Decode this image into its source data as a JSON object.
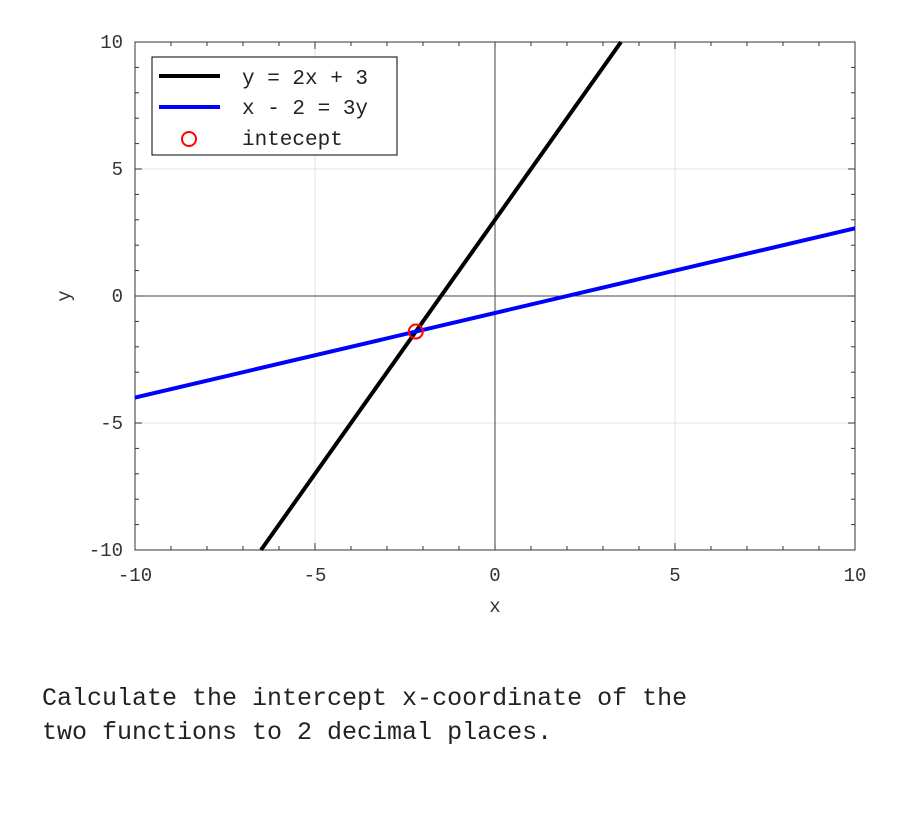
{
  "chart_data": {
    "type": "line",
    "title": "",
    "xlabel": "x",
    "ylabel": "y",
    "xlim": [
      -10,
      10
    ],
    "ylim": [
      -10,
      10
    ],
    "xticks": [
      -10,
      -5,
      0,
      5,
      10
    ],
    "yticks": [
      -10,
      -5,
      0,
      5,
      10
    ],
    "grid": true,
    "legend_position": "top-left",
    "series": [
      {
        "name": "y = 2x + 3",
        "color": "#000000",
        "slope": 2,
        "intercept": 3,
        "x": [
          -6.5,
          3.5
        ],
        "y": [
          -10,
          10
        ]
      },
      {
        "name": "x - 2 = 3y",
        "color": "#0000ff",
        "slope": 0.3333,
        "intercept": -0.6667,
        "x": [
          -10,
          10
        ],
        "y": [
          -4,
          2.6667
        ]
      }
    ],
    "points": [
      {
        "name": "intecept",
        "color": "#ff0000",
        "marker": "circle-open",
        "x": -2.2,
        "y": -1.4
      }
    ]
  },
  "question": "Calculate the intercept x-coordinate of the\ntwo functions to 2 decimal places."
}
